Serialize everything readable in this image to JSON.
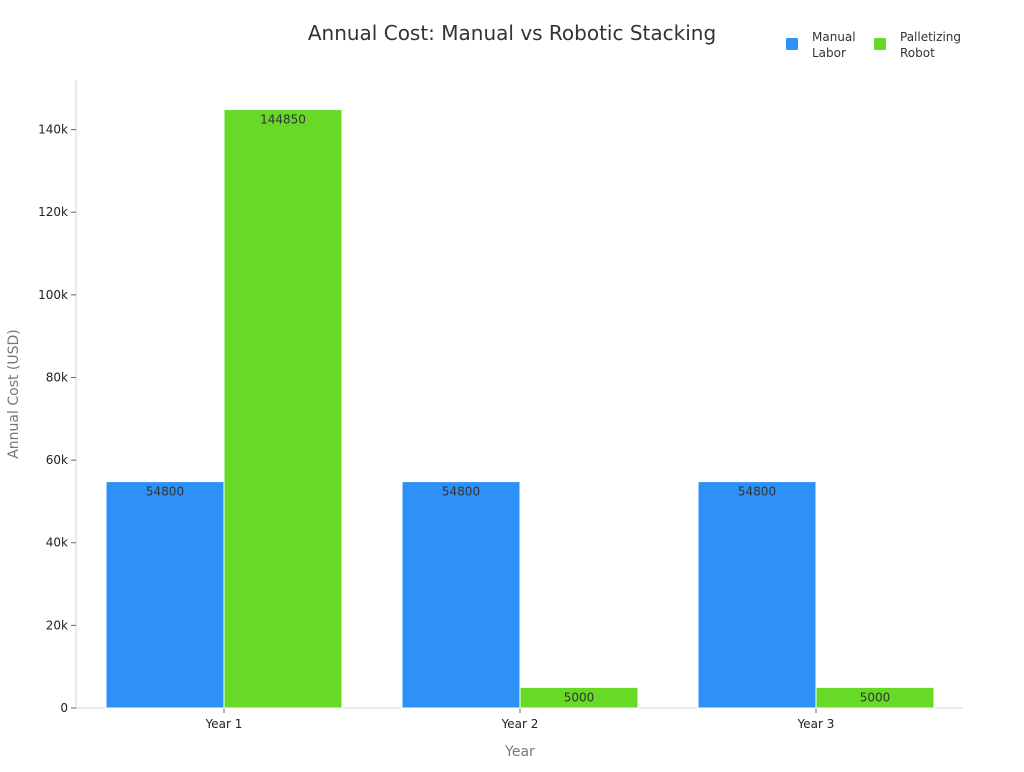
{
  "chart_data": {
    "type": "bar",
    "title": "Annual Cost: Manual vs Robotic Stacking",
    "xlabel": "Year",
    "ylabel": "Annual Cost (USD)",
    "categories": [
      "Year 1",
      "Year 2",
      "Year 3"
    ],
    "series": [
      {
        "name": "Manual Labor",
        "legend_lines": [
          "Manual",
          "Labor"
        ],
        "color": "#2e91f8",
        "values": [
          54800,
          54800,
          54800
        ],
        "labels": [
          "54800",
          "54800",
          "54800"
        ]
      },
      {
        "name": "Palletizing Robot",
        "legend_lines": [
          "Palletizing",
          "Robot"
        ],
        "color": "#66da26",
        "values": [
          144850,
          5000,
          5000
        ],
        "labels": [
          "144850",
          "5000",
          "5000"
        ]
      }
    ],
    "ylim": [
      0,
      152000
    ],
    "yticks": [
      0,
      20000,
      40000,
      60000,
      80000,
      100000,
      120000,
      140000
    ],
    "ytick_labels": [
      "0",
      "20k",
      "40k",
      "60k",
      "80k",
      "100k",
      "120k",
      "140k"
    ],
    "grid": false,
    "legend_position": "top-right"
  }
}
